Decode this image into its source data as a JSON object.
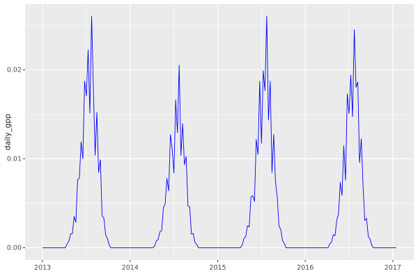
{
  "chart_data": {
    "type": "line",
    "title": "",
    "xlabel": "",
    "ylabel": "daily_gpp",
    "series_name": "daily_gpp",
    "line_color": "#0000ff",
    "xlim": [
      2012.8,
      2017.24
    ],
    "ylim": [
      -0.00137,
      0.02737
    ],
    "x_axis": {
      "ticks": [
        {
          "value": 2013,
          "label": "2013"
        },
        {
          "value": 2014,
          "label": "2014"
        },
        {
          "value": 2015,
          "label": "2015"
        },
        {
          "value": 2016,
          "label": "2016"
        },
        {
          "value": 2017,
          "label": "2017"
        }
      ],
      "minor": [
        2013.5,
        2014.5,
        2015.5,
        2016.5
      ]
    },
    "y_axis": {
      "ticks": [
        {
          "value": 0.0,
          "label": "0.00"
        },
        {
          "value": 0.01,
          "label": "0.01"
        },
        {
          "value": 0.02,
          "label": "0.02"
        }
      ],
      "minor": [
        0.005,
        0.015,
        0.025
      ]
    },
    "style": {
      "panel_bg": "#ebebeb",
      "grid_major": "#ffffff",
      "grid_minor": "#ffffff",
      "tick_text": "#4d4d4d",
      "tick_mark": "#333333"
    },
    "x_start": 2013.0,
    "x_step": 0.02,
    "y": [
      0,
      0,
      0,
      0,
      0,
      0,
      0,
      0,
      0,
      0,
      0,
      0,
      0,
      0,
      0.00044,
      0.00073,
      0.00156,
      0.00156,
      0.00351,
      0.00286,
      0.00764,
      0.0078,
      0.0119,
      0.01,
      0.01872,
      0.01706,
      0.02223,
      0.01513,
      0.026,
      0.01794,
      0.0104,
      0.01521,
      0.00845,
      0.00988,
      0.00358,
      0.00332,
      0.00146,
      0.00104,
      0.00031,
      0,
      0,
      0,
      0,
      0,
      0,
      0,
      0,
      0,
      0,
      0,
      0,
      0,
      0,
      0,
      0,
      0,
      0,
      0,
      0,
      0,
      0,
      0,
      0,
      0,
      0.00021,
      0.0008,
      0.00092,
      0.0018,
      0.00191,
      0.00451,
      0.00492,
      0.00779,
      0.0064,
      0.01271,
      0.01107,
      0.00841,
      0.01661,
      0.01293,
      0.0205,
      0.01037,
      0.01394,
      0.00933,
      0.01025,
      0.00467,
      0.00461,
      0.00154,
      0.00161,
      0.00062,
      0.00036,
      0,
      0,
      0,
      0,
      0,
      0,
      0,
      0,
      0,
      0,
      0,
      0,
      0,
      0,
      0,
      0,
      0,
      0,
      0,
      0,
      0,
      0,
      0,
      0,
      0,
      0.00032,
      0.00104,
      0.00125,
      0.00247,
      0.00234,
      0.00572,
      0.00585,
      0.0052,
      0.01217,
      0.01048,
      0.01872,
      0.01173,
      0.01989,
      0.01765,
      0.026,
      0.01435,
      0.01872,
      0.00845,
      0.01274,
      0.00741,
      0.00572,
      0.00242,
      0.00208,
      0.00083,
      0.00049,
      0,
      0,
      0,
      0,
      0,
      0,
      0,
      0,
      0,
      0,
      0,
      0,
      0,
      0,
      0,
      0,
      0,
      0,
      0,
      0,
      0,
      0,
      0,
      0,
      0,
      0.00044,
      0.00064,
      0.00147,
      0.00135,
      0.00312,
      0.00377,
      0.00735,
      0.00588,
      0.01147,
      0.0076,
      0.01729,
      0.01507,
      0.0194,
      0.01473,
      0.0245,
      0.01803,
      0.01862,
      0.00956,
      0.01225,
      0.00698,
      0.00306,
      0.00331,
      0.00127,
      0.00098,
      0.00027,
      0,
      0,
      0,
      0,
      0,
      0,
      0,
      0,
      0,
      0,
      0,
      0,
      0,
      0
    ]
  }
}
